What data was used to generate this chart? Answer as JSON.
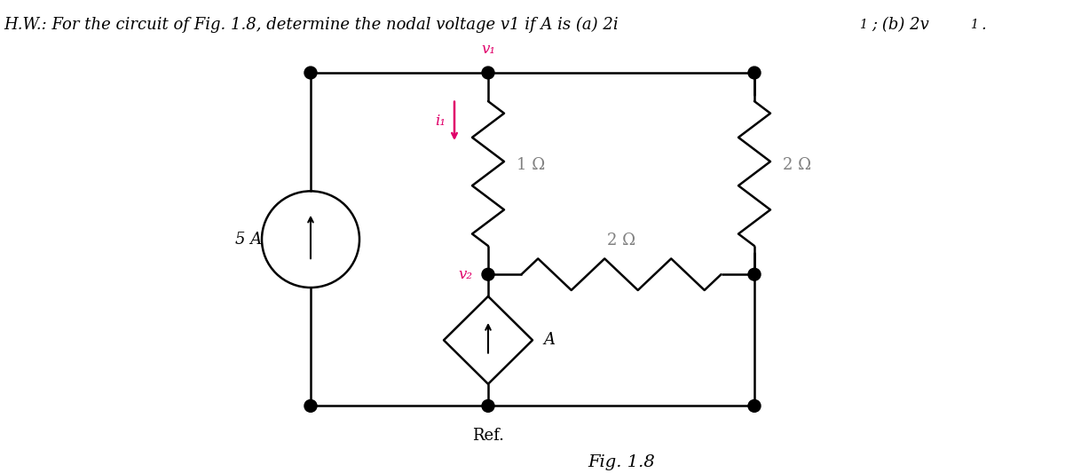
{
  "title": "H.W.: For the circuit of Fig. 1.8, determine the nodal voltage v1 if A is (a) 2i₁; (b) 2v₁.",
  "fig_label": "Fig. 1.8",
  "ref_label": "Ref.",
  "background": "#ffffff",
  "line_color": "#000000",
  "pink_color": "#e0006a",
  "gray_color": "#808080",
  "resistor_1_label": "1 Ω",
  "resistor_2a_label": "2 Ω",
  "resistor_2b_label": "2 Ω",
  "current_source_label": "5 A",
  "dep_source_label": "A",
  "v1_label": "v₁",
  "v2_label": "v₂",
  "i1_label": "i₁"
}
